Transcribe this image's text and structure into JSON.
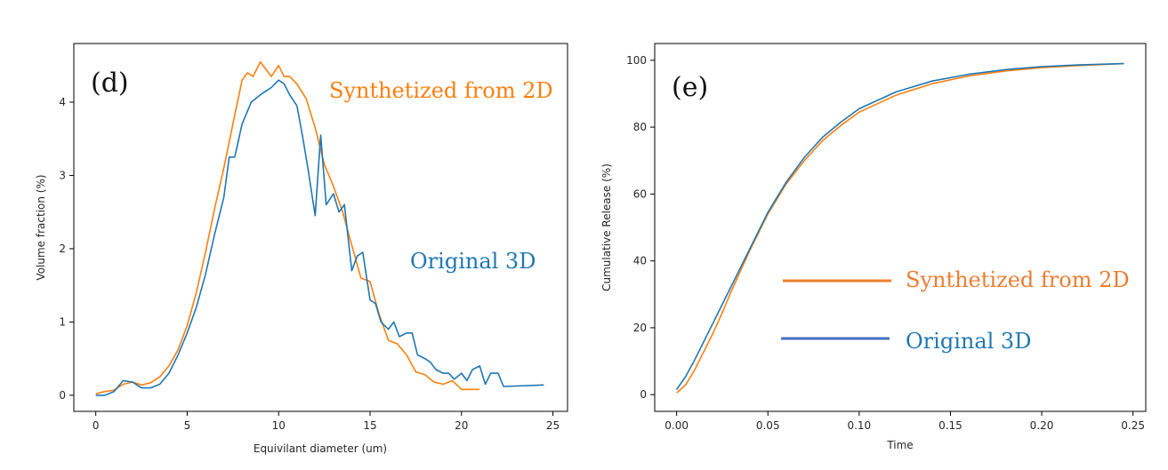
{
  "colors": {
    "orange": "#ff7f0e",
    "blue": "#1f77b4",
    "legend_orange": "#ed7d31",
    "legend_blue": "#4472c4"
  },
  "chart_data": [
    {
      "type": "line",
      "panel_label": "(d)",
      "xlabel": "Equivilant diameter (um)",
      "ylabel": "Volume fraction (%)",
      "xlim": [
        -1.2,
        25.8
      ],
      "ylim": [
        -0.22,
        4.8
      ],
      "xticks": [
        0,
        5,
        10,
        15,
        20,
        25
      ],
      "xtick_labels": [
        "0",
        "5",
        "10",
        "15",
        "20",
        "25"
      ],
      "yticks": [
        0,
        1,
        2,
        3,
        4
      ],
      "ytick_labels": [
        "0",
        "1",
        "2",
        "3",
        "4"
      ],
      "grid": false,
      "annotations": [
        {
          "text": "Synthetized from 2D",
          "color": "orange",
          "position": "upper-right"
        },
        {
          "text": "Original 3D",
          "color": "blue",
          "position": "middle-right"
        }
      ],
      "series": [
        {
          "name": "Synthetized from 2D",
          "color": "orange",
          "x": [
            0,
            0.5,
            1,
            1.5,
            2,
            2.5,
            3,
            3.5,
            4,
            4.5,
            5,
            5.5,
            6,
            6.5,
            7,
            7.5,
            8,
            8.3,
            8.6,
            9,
            9.3,
            9.6,
            10,
            10.3,
            10.6,
            11,
            11.5,
            12,
            12.5,
            13,
            13.5,
            14,
            14.5,
            15,
            15.5,
            16,
            16.5,
            17,
            17.5,
            18,
            18.5,
            19,
            19.5,
            20,
            21
          ],
          "y": [
            0.02,
            0.05,
            0.07,
            0.15,
            0.18,
            0.14,
            0.17,
            0.25,
            0.4,
            0.62,
            0.95,
            1.4,
            1.95,
            2.55,
            3.1,
            3.7,
            4.3,
            4.4,
            4.35,
            4.55,
            4.45,
            4.35,
            4.5,
            4.35,
            4.35,
            4.25,
            4.05,
            3.65,
            3.15,
            2.85,
            2.5,
            2.05,
            1.6,
            1.55,
            1.1,
            0.75,
            0.7,
            0.55,
            0.32,
            0.28,
            0.18,
            0.15,
            0.2,
            0.08,
            0.08
          ]
        },
        {
          "name": "Original 3D",
          "color": "blue",
          "x": [
            0,
            0.5,
            1,
            1.5,
            2,
            2.5,
            3,
            3.5,
            4,
            4.5,
            5,
            5.5,
            6,
            6.5,
            7,
            7.3,
            7.6,
            8,
            8.5,
            9,
            9.3,
            9.6,
            10,
            10.3,
            10.6,
            11,
            11.3,
            11.6,
            12,
            12.3,
            12.6,
            13,
            13.3,
            13.6,
            14,
            14.3,
            14.6,
            15,
            15.3,
            15.6,
            16,
            16.3,
            16.6,
            17,
            17.3,
            17.6,
            18,
            18.3,
            18.6,
            19,
            19.3,
            19.6,
            20,
            20.3,
            20.6,
            21,
            21.3,
            21.6,
            22,
            22.3,
            24.5
          ],
          "y": [
            0.0,
            0.0,
            0.05,
            0.2,
            0.18,
            0.1,
            0.1,
            0.15,
            0.3,
            0.55,
            0.85,
            1.2,
            1.65,
            2.2,
            2.7,
            3.25,
            3.25,
            3.7,
            4.0,
            4.1,
            4.15,
            4.2,
            4.3,
            4.25,
            4.1,
            3.95,
            3.55,
            3.1,
            2.45,
            3.55,
            2.6,
            2.75,
            2.5,
            2.6,
            1.7,
            1.9,
            1.95,
            1.3,
            1.25,
            1.0,
            0.9,
            1.0,
            0.8,
            0.85,
            0.85,
            0.55,
            0.5,
            0.45,
            0.35,
            0.3,
            0.3,
            0.22,
            0.3,
            0.2,
            0.35,
            0.4,
            0.15,
            0.3,
            0.3,
            0.12,
            0.14
          ]
        }
      ]
    },
    {
      "type": "line",
      "panel_label": "(e)",
      "xlabel": "Time",
      "ylabel": "Cumulative Release (%)",
      "xlim": [
        -0.012,
        0.257
      ],
      "ylim": [
        -5,
        105
      ],
      "xticks": [
        0.0,
        0.05,
        0.1,
        0.15,
        0.2,
        0.25
      ],
      "xtick_labels": [
        "0.00",
        "0.05",
        "0.10",
        "0.15",
        "0.20",
        "0.25"
      ],
      "yticks": [
        0,
        20,
        40,
        60,
        80,
        100
      ],
      "ytick_labels": [
        "0",
        "20",
        "40",
        "60",
        "80",
        "100"
      ],
      "grid": false,
      "legend": {
        "position": "center-right"
      },
      "series": [
        {
          "name": "Synthetized from 2D",
          "color": "orange",
          "x": [
            0,
            0.005,
            0.01,
            0.015,
            0.02,
            0.025,
            0.03,
            0.035,
            0.04,
            0.05,
            0.06,
            0.07,
            0.08,
            0.09,
            0.1,
            0.12,
            0.14,
            0.16,
            0.18,
            0.2,
            0.22,
            0.245
          ],
          "y": [
            0.5,
            3,
            7.5,
            13,
            18.5,
            24.5,
            31,
            37,
            43,
            54,
            63,
            70,
            76,
            80.5,
            84.5,
            89.5,
            93,
            95.3,
            96.8,
            97.8,
            98.4,
            99
          ]
        },
        {
          "name": "Original 3D",
          "color": "blue",
          "x": [
            0,
            0.005,
            0.01,
            0.015,
            0.02,
            0.025,
            0.03,
            0.035,
            0.04,
            0.05,
            0.06,
            0.07,
            0.08,
            0.09,
            0.1,
            0.12,
            0.14,
            0.16,
            0.18,
            0.2,
            0.22,
            0.245
          ],
          "y": [
            1.5,
            5.5,
            10.5,
            16,
            21.5,
            27,
            32.5,
            38,
            43.5,
            54.5,
            63.5,
            71,
            77,
            81.5,
            85.5,
            90.5,
            93.8,
            95.8,
            97.2,
            98.1,
            98.6,
            99
          ]
        }
      ]
    }
  ]
}
